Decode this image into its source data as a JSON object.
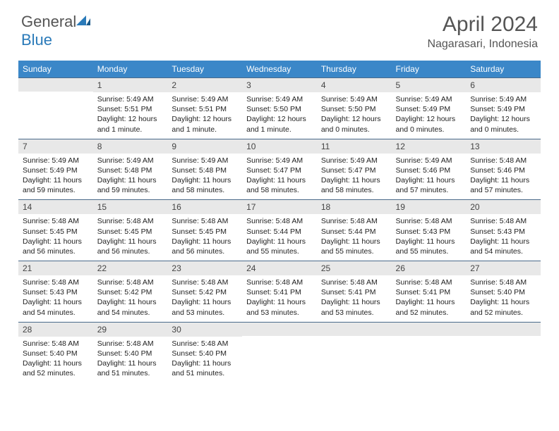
{
  "logo": {
    "text1": "General",
    "text2": "Blue"
  },
  "title": "April 2024",
  "location": "Nagarasari, Indonesia",
  "dow": [
    "Sunday",
    "Monday",
    "Tuesday",
    "Wednesday",
    "Thursday",
    "Friday",
    "Saturday"
  ],
  "colors": {
    "header_bg": "#3b87c8",
    "header_text": "#ffffff",
    "daynum_bg": "#e8e8e8",
    "border": "#4a6a8a",
    "logo_blue": "#2a7ab9",
    "text": "#333333"
  },
  "typography": {
    "title_fontsize": 30,
    "location_fontsize": 16,
    "dow_fontsize": 12,
    "daynum_fontsize": 12,
    "info_fontsize": 10.5
  },
  "first_day_offset": 1,
  "days": [
    {
      "n": 1,
      "sr": "5:49 AM",
      "ss": "5:51 PM",
      "dl": "12 hours and 1 minute."
    },
    {
      "n": 2,
      "sr": "5:49 AM",
      "ss": "5:51 PM",
      "dl": "12 hours and 1 minute."
    },
    {
      "n": 3,
      "sr": "5:49 AM",
      "ss": "5:50 PM",
      "dl": "12 hours and 1 minute."
    },
    {
      "n": 4,
      "sr": "5:49 AM",
      "ss": "5:50 PM",
      "dl": "12 hours and 0 minutes."
    },
    {
      "n": 5,
      "sr": "5:49 AM",
      "ss": "5:49 PM",
      "dl": "12 hours and 0 minutes."
    },
    {
      "n": 6,
      "sr": "5:49 AM",
      "ss": "5:49 PM",
      "dl": "12 hours and 0 minutes."
    },
    {
      "n": 7,
      "sr": "5:49 AM",
      "ss": "5:49 PM",
      "dl": "11 hours and 59 minutes."
    },
    {
      "n": 8,
      "sr": "5:49 AM",
      "ss": "5:48 PM",
      "dl": "11 hours and 59 minutes."
    },
    {
      "n": 9,
      "sr": "5:49 AM",
      "ss": "5:48 PM",
      "dl": "11 hours and 58 minutes."
    },
    {
      "n": 10,
      "sr": "5:49 AM",
      "ss": "5:47 PM",
      "dl": "11 hours and 58 minutes."
    },
    {
      "n": 11,
      "sr": "5:49 AM",
      "ss": "5:47 PM",
      "dl": "11 hours and 58 minutes."
    },
    {
      "n": 12,
      "sr": "5:49 AM",
      "ss": "5:46 PM",
      "dl": "11 hours and 57 minutes."
    },
    {
      "n": 13,
      "sr": "5:48 AM",
      "ss": "5:46 PM",
      "dl": "11 hours and 57 minutes."
    },
    {
      "n": 14,
      "sr": "5:48 AM",
      "ss": "5:45 PM",
      "dl": "11 hours and 56 minutes."
    },
    {
      "n": 15,
      "sr": "5:48 AM",
      "ss": "5:45 PM",
      "dl": "11 hours and 56 minutes."
    },
    {
      "n": 16,
      "sr": "5:48 AM",
      "ss": "5:45 PM",
      "dl": "11 hours and 56 minutes."
    },
    {
      "n": 17,
      "sr": "5:48 AM",
      "ss": "5:44 PM",
      "dl": "11 hours and 55 minutes."
    },
    {
      "n": 18,
      "sr": "5:48 AM",
      "ss": "5:44 PM",
      "dl": "11 hours and 55 minutes."
    },
    {
      "n": 19,
      "sr": "5:48 AM",
      "ss": "5:43 PM",
      "dl": "11 hours and 55 minutes."
    },
    {
      "n": 20,
      "sr": "5:48 AM",
      "ss": "5:43 PM",
      "dl": "11 hours and 54 minutes."
    },
    {
      "n": 21,
      "sr": "5:48 AM",
      "ss": "5:43 PM",
      "dl": "11 hours and 54 minutes."
    },
    {
      "n": 22,
      "sr": "5:48 AM",
      "ss": "5:42 PM",
      "dl": "11 hours and 54 minutes."
    },
    {
      "n": 23,
      "sr": "5:48 AM",
      "ss": "5:42 PM",
      "dl": "11 hours and 53 minutes."
    },
    {
      "n": 24,
      "sr": "5:48 AM",
      "ss": "5:41 PM",
      "dl": "11 hours and 53 minutes."
    },
    {
      "n": 25,
      "sr": "5:48 AM",
      "ss": "5:41 PM",
      "dl": "11 hours and 53 minutes."
    },
    {
      "n": 26,
      "sr": "5:48 AM",
      "ss": "5:41 PM",
      "dl": "11 hours and 52 minutes."
    },
    {
      "n": 27,
      "sr": "5:48 AM",
      "ss": "5:40 PM",
      "dl": "11 hours and 52 minutes."
    },
    {
      "n": 28,
      "sr": "5:48 AM",
      "ss": "5:40 PM",
      "dl": "11 hours and 52 minutes."
    },
    {
      "n": 29,
      "sr": "5:48 AM",
      "ss": "5:40 PM",
      "dl": "11 hours and 51 minutes."
    },
    {
      "n": 30,
      "sr": "5:48 AM",
      "ss": "5:40 PM",
      "dl": "11 hours and 51 minutes."
    }
  ],
  "labels": {
    "sunrise": "Sunrise:",
    "sunset": "Sunset:",
    "daylight": "Daylight:"
  }
}
